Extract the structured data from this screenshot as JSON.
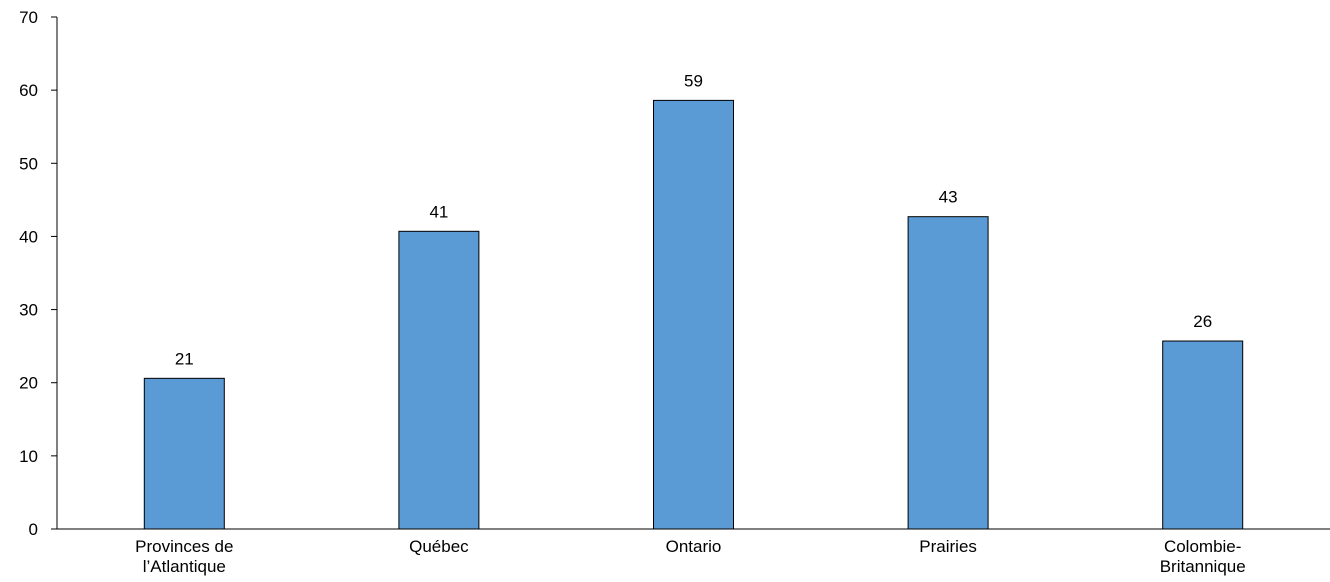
{
  "chart_data": {
    "type": "bar",
    "title": "",
    "xlabel": "",
    "ylabel": "",
    "categories": [
      [
        "Provinces de",
        "l’Atlantique"
      ],
      [
        "Québec"
      ],
      [
        "Ontario"
      ],
      [
        "Prairies"
      ],
      [
        "Colombie-",
        "Britannique"
      ]
    ],
    "values": [
      20.6,
      40.7,
      58.6,
      42.7,
      25.7
    ],
    "value_labels": [
      "21",
      "41",
      "59",
      "43",
      "26"
    ],
    "ylim": [
      0,
      70
    ],
    "yticks": [
      0,
      10,
      20,
      30,
      40,
      50,
      60,
      70
    ],
    "grid": false,
    "legend": "none",
    "bar_color": "#5b9bd5",
    "bar_edge_color": "#000000"
  }
}
